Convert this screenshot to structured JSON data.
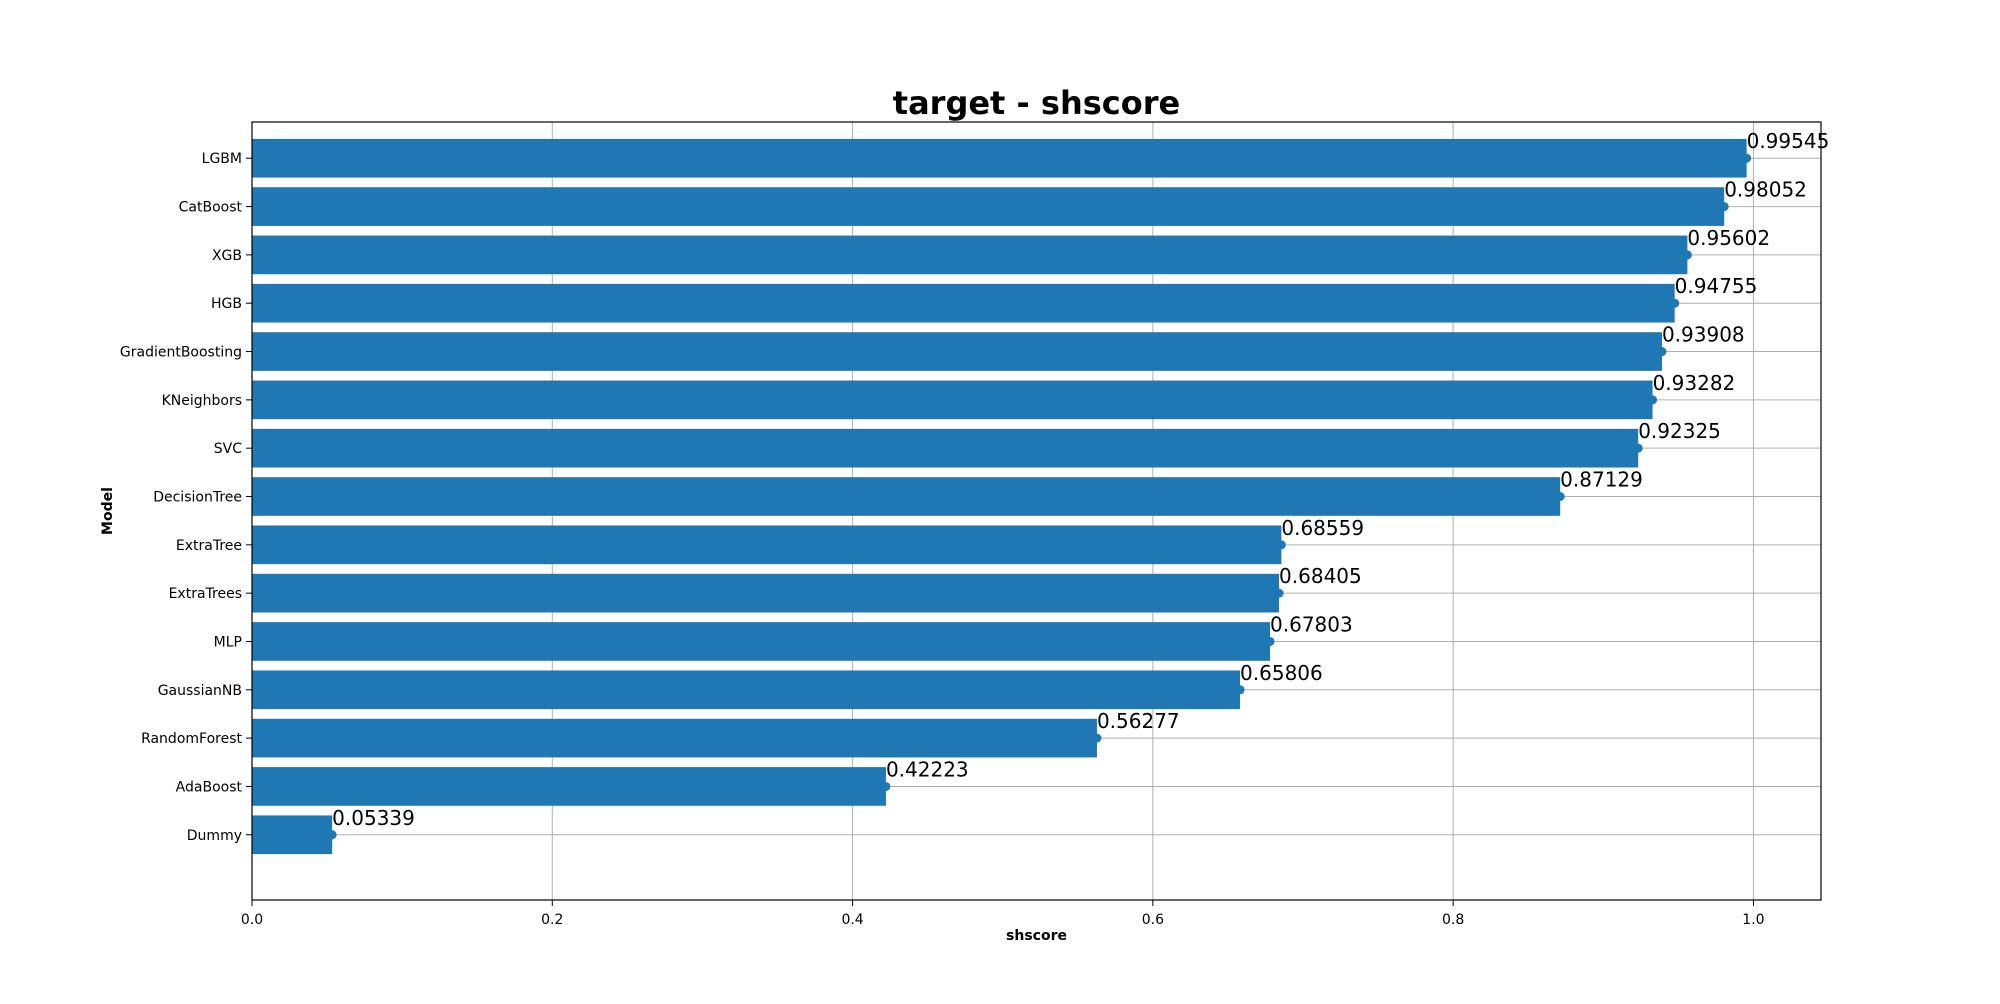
{
  "chart_data": {
    "type": "bar",
    "orientation": "horizontal",
    "title": "target - shscore",
    "xlabel": "shscore",
    "ylabel": "Model",
    "xlim": [
      0,
      1.045
    ],
    "xticks": [
      0.0,
      0.2,
      0.4,
      0.6,
      0.8,
      1.0
    ],
    "xtick_labels": [
      "0.0",
      "0.2",
      "0.4",
      "0.6",
      "0.8",
      "1.0"
    ],
    "grid": true,
    "categories": [
      "LGBM",
      "CatBoost",
      "XGB",
      "HGB",
      "GradientBoosting",
      "KNeighbors",
      "SVC",
      "DecisionTree",
      "ExtraTree",
      "ExtraTrees",
      "MLP",
      "GaussianNB",
      "RandomForest",
      "AdaBoost",
      "Dummy"
    ],
    "values": [
      0.99545,
      0.98052,
      0.95602,
      0.94755,
      0.93908,
      0.93282,
      0.92325,
      0.87129,
      0.68559,
      0.68405,
      0.67803,
      0.65806,
      0.56277,
      0.42223,
      0.05339
    ],
    "value_labels": [
      "0.99545",
      "0.98052",
      "0.95602",
      "0.94755",
      "0.93908",
      "0.93282",
      "0.92325",
      "0.87129",
      "0.68559",
      "0.68405",
      "0.67803",
      "0.65806",
      "0.56277",
      "0.42223",
      "0.05339"
    ],
    "bar_color": "#1f77b4",
    "grid_color": "#b0b0b0"
  }
}
